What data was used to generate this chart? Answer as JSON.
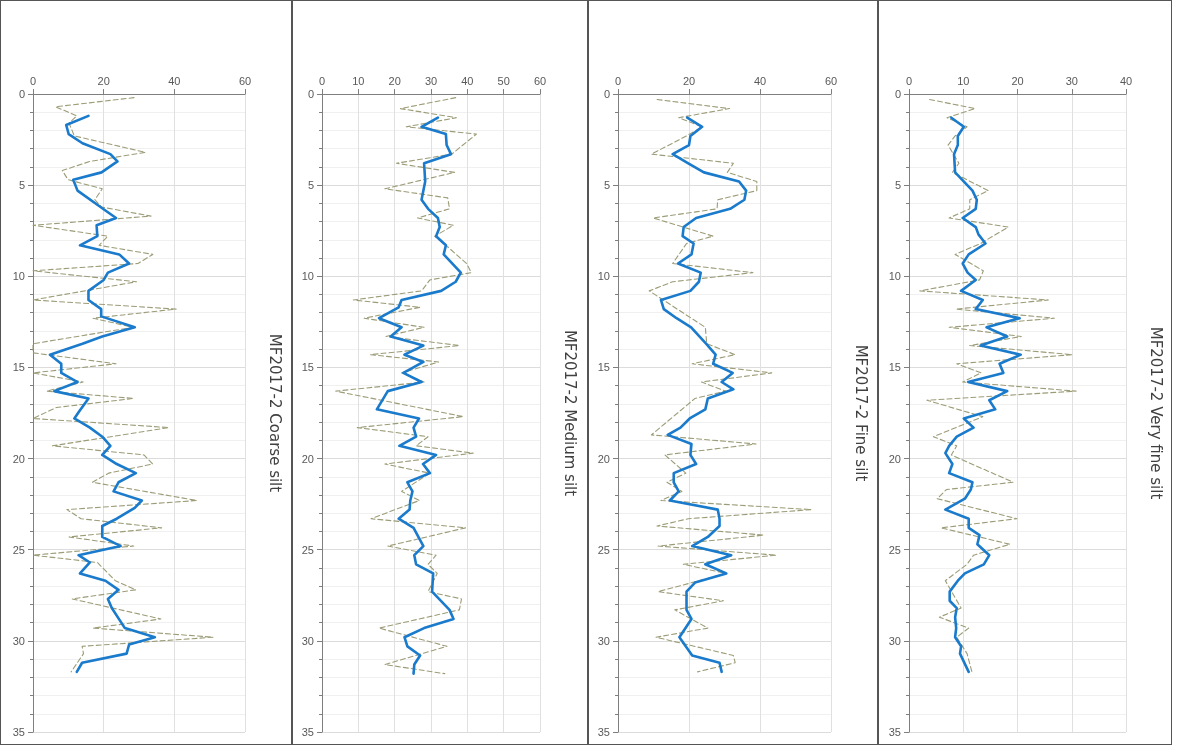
{
  "chart_data": [
    {
      "type": "line",
      "y2label": "MF2017-2 Coarse silt",
      "xlim": [
        0,
        60
      ],
      "xticks": [
        0,
        20,
        40,
        60
      ],
      "ylim": [
        35,
        0
      ],
      "yticks": [
        0,
        5,
        10,
        15,
        20,
        25,
        30,
        35
      ],
      "grid": true,
      "marker": "none",
      "series": [
        {
          "color": "#9c9c78",
          "line_style": "dashed",
          "x": [
            28.6,
            6.4,
            12.4,
            10.2,
            11.7,
            31.8,
            16.1,
            8.3,
            9.9,
            19.6,
            17.5,
            19.4,
            33.4,
            0,
            21.2,
            18.7,
            33.9,
            29.7,
            0,
            29.3,
            0,
            40.5,
            17.0,
            28.3,
            0,
            0,
            23.5,
            0,
            14.2,
            3.9,
            28.5,
            6.6,
            0,
            38.5,
            5.5,
            31.4,
            33.9,
            21.4,
            16.8,
            46.4,
            9.6,
            13.6,
            36.4,
            10.2,
            28.5,
            0,
            18.2,
            23.3,
            29.1,
            11.1,
            36.2,
            17.0,
            51.0,
            13.9,
            14.3,
            10.8
          ],
          "values": [
            0.2,
            0.7,
            1.2,
            1.6,
            2.3,
            3.2,
            3.7,
            4.2,
            4.7,
            5.2,
            5.8,
            6.2,
            6.7,
            7.2,
            7.8,
            8.3,
            8.8,
            9.3,
            9.7,
            10.3,
            11.3,
            11.8,
            12.3,
            12.8,
            13.7,
            14.2,
            14.8,
            15.3,
            15.8,
            16.3,
            16.7,
            17.2,
            17.8,
            18.3,
            19.3,
            19.8,
            20.3,
            20.8,
            21.3,
            22.3,
            22.8,
            23.3,
            23.8,
            24.3,
            24.8,
            25.3,
            25.7,
            26.7,
            27.2,
            27.7,
            28.8,
            29.3,
            29.8,
            30.3,
            30.7,
            31.7
          ]
        },
        {
          "color": "#1a7acb",
          "line_style": "solid",
          "x": [
            15.7,
            9.4,
            10.1,
            14.0,
            21.9,
            23.9,
            19.4,
            11.4,
            12.6,
            19.1,
            23.5,
            18.0,
            18.2,
            13.3,
            24.4,
            27.2,
            21.2,
            20.0,
            15.7,
            15.7,
            19.3,
            19.3,
            28.8,
            19.6,
            14.0,
            4.8,
            8.0,
            8.0,
            12.6,
            6.0,
            15.7,
            13.1,
            11.7,
            16.1,
            19.6,
            21.9,
            19.6,
            23.7,
            29.1,
            24.2,
            22.8,
            30.8,
            28.8,
            23.7,
            19.6,
            19.6,
            24.8,
            12.9,
            16.1,
            13.3,
            20.5,
            24.2,
            21.2,
            22.3,
            26.0,
            34.5,
            27.2,
            26.5,
            13.9,
            12.4
          ],
          "values": [
            1.2,
            1.7,
            2.2,
            2.7,
            3.3,
            3.7,
            4.3,
            4.7,
            5.3,
            6.2,
            6.8,
            7.2,
            7.8,
            8.3,
            8.8,
            9.3,
            9.8,
            10.2,
            10.8,
            11.3,
            11.8,
            12.2,
            12.8,
            13.3,
            13.7,
            14.3,
            14.8,
            15.3,
            15.8,
            16.3,
            16.7,
            17.4,
            17.8,
            18.3,
            18.8,
            19.3,
            19.8,
            20.3,
            20.8,
            21.3,
            21.8,
            22.3,
            22.7,
            23.3,
            23.7,
            24.3,
            24.8,
            25.3,
            25.7,
            26.3,
            26.7,
            27.2,
            27.7,
            28.2,
            29.3,
            29.8,
            30.2,
            30.7,
            31.2,
            31.7
          ]
        }
      ]
    },
    {
      "type": "line",
      "y2label": "MF2017-2 Medium silt",
      "xlim": [
        0,
        60
      ],
      "xticks": [
        0,
        10,
        20,
        30,
        40,
        50,
        60
      ],
      "ylim": [
        35,
        0
      ],
      "yticks": [
        0,
        5,
        10,
        15,
        20,
        25,
        30,
        35
      ],
      "grid": true,
      "marker": "none",
      "series": [
        {
          "color": "#9c9c78",
          "line_style": "dashed",
          "x": [
            36.8,
            21.6,
            37.0,
            23.2,
            42.5,
            35.7,
            20.5,
            36.5,
            17.3,
            34.6,
            35.1,
            26.3,
            36.2,
            31.0,
            34.1,
            39.8,
            41.1,
            29.7,
            27.4,
            8.6,
            27.0,
            11.6,
            28.1,
            17.6,
            37.8,
            13.3,
            32.1,
            21.9,
            28.1,
            3.8,
            38.9,
            9.7,
            29.2,
            25.9,
            41.6,
            17.3,
            29.7,
            21.9,
            26.8,
            13.5,
            39.5,
            18.1,
            31.4,
            29.2,
            31.7,
            29.2,
            38.4,
            37.8,
            15.7,
            34.4,
            17.3,
            33.8
          ],
          "values": [
            0.2,
            0.8,
            1.3,
            1.8,
            2.2,
            3.3,
            3.8,
            4.3,
            5.2,
            5.7,
            6.3,
            6.8,
            7.2,
            7.8,
            8.3,
            9.3,
            9.8,
            10.2,
            10.8,
            11.3,
            11.7,
            12.3,
            12.8,
            13.3,
            13.8,
            14.3,
            14.7,
            15.3,
            15.8,
            16.3,
            17.7,
            18.3,
            18.8,
            19.3,
            19.7,
            20.3,
            20.8,
            21.8,
            22.3,
            23.3,
            23.8,
            24.8,
            25.3,
            25.8,
            26.3,
            27.3,
            27.7,
            28.3,
            29.3,
            30.3,
            31.3,
            31.8
          ]
        },
        {
          "color": "#1a7acb",
          "line_style": "solid",
          "x": [
            31.9,
            27.4,
            34.1,
            34.3,
            35.5,
            28.1,
            28.4,
            27.4,
            29.2,
            31.9,
            32.4,
            31.4,
            34.1,
            33.5,
            38.2,
            36.8,
            32.8,
            21.9,
            21.1,
            15.7,
            21.9,
            18.9,
            27.9,
            22.7,
            27.9,
            22.4,
            27.4,
            18.1,
            15.1,
            26.7,
            25.2,
            25.9,
            21.3,
            31.4,
            27.8,
            29.7,
            23.5,
            24.9,
            24.3,
            24.1,
            21.1,
            25.2,
            27.9,
            25.4,
            25.9,
            30.6,
            30.3,
            35.1,
            36.2,
            28.1,
            22.7,
            23.5,
            27.0,
            25.4,
            25.2
          ],
          "values": [
            1.3,
            1.8,
            2.2,
            2.8,
            3.3,
            3.8,
            4.8,
            5.8,
            6.3,
            6.8,
            7.3,
            7.8,
            8.3,
            8.8,
            9.8,
            10.3,
            10.8,
            11.3,
            11.7,
            12.3,
            12.8,
            13.3,
            13.8,
            14.3,
            14.7,
            15.3,
            15.8,
            16.3,
            17.3,
            17.8,
            18.3,
            18.8,
            19.3,
            19.8,
            20.3,
            20.8,
            21.3,
            21.8,
            22.3,
            22.8,
            23.3,
            23.8,
            24.8,
            25.3,
            25.8,
            26.3,
            27.3,
            28.3,
            28.8,
            29.3,
            29.8,
            30.3,
            30.8,
            31.3,
            31.8
          ]
        }
      ]
    },
    {
      "type": "line",
      "y2label": "MF2017-2 Fine silt",
      "xlim": [
        0,
        60
      ],
      "xticks": [
        0,
        20,
        40,
        60
      ],
      "ylim": [
        35,
        0
      ],
      "yticks": [
        0,
        5,
        10,
        15,
        20,
        25,
        30,
        35
      ],
      "grid": true,
      "marker": "none",
      "series": [
        {
          "color": "#9c9c78",
          "line_style": "dashed",
          "x": [
            11.0,
            31.4,
            17.1,
            23.7,
            19.3,
            9.4,
            32.5,
            30.8,
            39.1,
            39.1,
            28.1,
            27.9,
            9.9,
            26.8,
            19.3,
            15.4,
            38.0,
            15.4,
            8.8,
            24.6,
            25.0,
            33.0,
            20.9,
            43.3,
            23.5,
            30.3,
            21.7,
            9.4,
            38.9,
            13.2,
            19.1,
            13.8,
            18.0,
            12.1,
            54.5,
            19.8,
            11.0,
            41.1,
            11.3,
            44.6,
            18.4,
            30.5,
            11.3,
            29.7,
            16.0,
            25.3,
            10.7,
            32.5,
            33.0,
            22.4
          ],
          "values": [
            0.3,
            0.8,
            1.3,
            1.8,
            2.3,
            3.3,
            3.8,
            4.3,
            4.8,
            5.3,
            5.8,
            6.3,
            6.8,
            7.8,
            8.2,
            9.3,
            9.8,
            10.3,
            10.8,
            12.8,
            13.7,
            14.3,
            14.8,
            15.3,
            15.8,
            16.3,
            16.7,
            18.7,
            19.2,
            19.8,
            20.8,
            21.3,
            21.8,
            22.3,
            22.8,
            23.3,
            23.7,
            24.2,
            24.8,
            25.3,
            25.8,
            26.3,
            27.3,
            27.8,
            28.3,
            29.3,
            29.8,
            30.8,
            31.2,
            31.7
          ]
        },
        {
          "color": "#1a7acb",
          "line_style": "solid",
          "x": [
            19.5,
            23.7,
            20.4,
            20.0,
            15.4,
            19.8,
            24.2,
            34.1,
            36.1,
            35.6,
            31.6,
            22.0,
            18.5,
            18.2,
            21.3,
            20.7,
            16.9,
            23.3,
            22.8,
            20.4,
            12.1,
            12.9,
            16.5,
            20.6,
            24.8,
            27.5,
            26.8,
            32.3,
            29.2,
            32.5,
            25.3,
            24.6,
            20.2,
            17.6,
            14.0,
            20.7,
            20.4,
            22.0,
            15.7,
            15.7,
            17.1,
            14.6,
            28.1,
            28.6,
            28.6,
            25.3,
            20.9,
            31.9,
            24.6,
            30.5,
            21.7,
            19.3,
            19.3,
            20.7,
            17.3,
            20.9,
            28.6,
            29.2
          ],
          "values": [
            1.3,
            1.8,
            2.3,
            2.8,
            3.3,
            3.8,
            4.3,
            4.8,
            5.3,
            5.8,
            6.3,
            6.8,
            7.3,
            7.8,
            8.2,
            8.8,
            9.3,
            9.8,
            10.3,
            10.8,
            11.3,
            11.8,
            12.3,
            12.8,
            13.7,
            14.3,
            14.8,
            15.3,
            15.8,
            16.2,
            16.7,
            17.3,
            17.8,
            18.3,
            18.7,
            19.2,
            19.8,
            20.3,
            20.8,
            21.3,
            21.8,
            22.3,
            22.8,
            23.3,
            23.7,
            24.3,
            24.8,
            25.3,
            25.8,
            26.3,
            26.8,
            27.3,
            28.3,
            28.8,
            29.8,
            30.8,
            31.2,
            31.7
          ]
        }
      ]
    },
    {
      "type": "line",
      "y2label": "MF2017-2 Very fine silt",
      "xlim": [
        0,
        40
      ],
      "xticks": [
        0,
        10,
        20,
        30,
        40
      ],
      "ylim": [
        35,
        0
      ],
      "yticks": [
        0,
        5,
        10,
        15,
        20,
        25,
        30,
        35
      ],
      "grid": true,
      "marker": "none",
      "series": [
        {
          "color": "#9c9c78",
          "line_style": "dashed",
          "x": [
            3.8,
            12.2,
            7.0,
            10.7,
            8.5,
            7.2,
            9.2,
            8.0,
            14.6,
            11.2,
            11.2,
            7.4,
            18.3,
            13.2,
            8.5,
            13.7,
            13.0,
            2.0,
            25.7,
            8.6,
            26.8,
            7.4,
            20.7,
            11.2,
            30.1,
            8.8,
            13.3,
            9.9,
            30.8,
            3.3,
            13.6,
            4.5,
            8.8,
            7.8,
            19.2,
            6.9,
            5.2,
            19.9,
            5.9,
            18.6,
            11.9,
            10.7,
            6.7,
            9.6,
            5.6,
            11.0,
            8.8,
            10.7,
            11.6
          ],
          "values": [
            0.3,
            0.8,
            1.3,
            1.8,
            2.3,
            2.8,
            3.8,
            4.3,
            5.3,
            5.8,
            6.3,
            6.8,
            7.3,
            8.2,
            8.8,
            9.7,
            10.2,
            10.8,
            11.3,
            11.8,
            12.3,
            12.8,
            13.3,
            13.8,
            14.3,
            14.8,
            15.3,
            15.8,
            16.3,
            16.8,
            17.7,
            18.8,
            19.3,
            19.8,
            21.3,
            21.7,
            22.2,
            23.3,
            23.8,
            24.7,
            25.3,
            25.8,
            26.7,
            28.2,
            28.7,
            29.3,
            29.8,
            30.7,
            31.7
          ]
        },
        {
          "color": "#1a7acb",
          "line_style": "solid",
          "x": [
            7.8,
            10.1,
            9.0,
            9.0,
            8.3,
            8.5,
            11.7,
            12.5,
            12.3,
            9.9,
            12.3,
            12.8,
            14.1,
            11.0,
            9.9,
            10.8,
            12.3,
            9.6,
            13.6,
            12.3,
            20.4,
            14.3,
            18.1,
            13.2,
            20.6,
            16.7,
            17.4,
            10.9,
            18.1,
            14.8,
            15.9,
            10.1,
            11.9,
            8.8,
            7.4,
            6.7,
            8.0,
            7.4,
            11.7,
            11.4,
            10.3,
            6.7,
            11.0,
            11.0,
            13.0,
            12.6,
            14.8,
            13.8,
            10.3,
            9.0,
            7.5,
            7.5,
            8.8,
            8.5,
            8.7,
            8.5,
            9.6,
            9.4,
            11.0
          ],
          "values": [
            1.3,
            1.8,
            2.3,
            2.8,
            3.3,
            4.3,
            5.3,
            5.8,
            6.3,
            6.8,
            7.3,
            7.7,
            8.2,
            8.8,
            9.3,
            9.8,
            10.2,
            10.8,
            11.3,
            11.8,
            12.3,
            12.8,
            13.3,
            13.8,
            14.3,
            14.8,
            15.3,
            15.8,
            16.3,
            16.8,
            17.3,
            17.8,
            18.3,
            18.8,
            19.3,
            19.7,
            20.3,
            20.8,
            21.3,
            21.7,
            22.2,
            22.8,
            23.3,
            23.8,
            24.2,
            24.7,
            25.3,
            25.8,
            26.3,
            26.7,
            27.3,
            27.8,
            28.2,
            28.7,
            29.3,
            29.8,
            30.3,
            30.7,
            31.7
          ]
        }
      ]
    }
  ]
}
